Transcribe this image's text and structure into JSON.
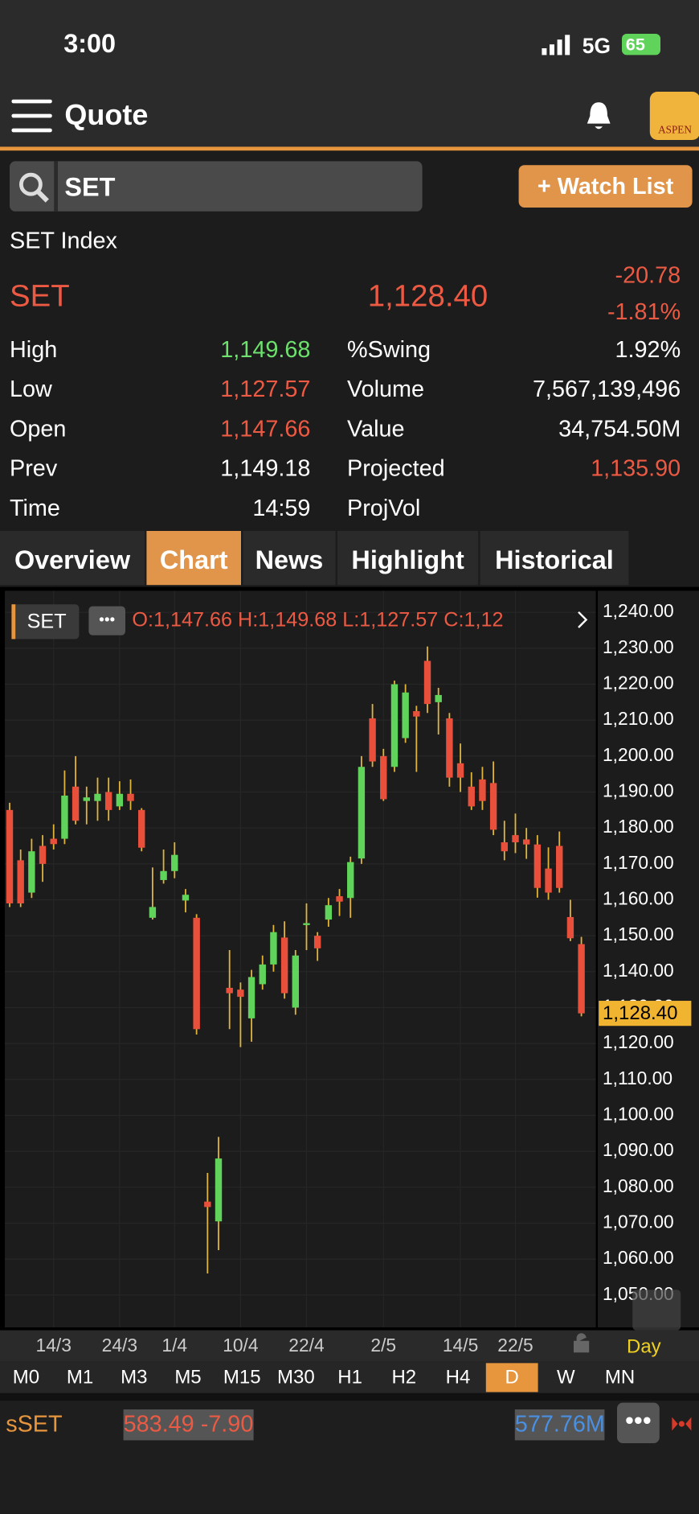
{
  "status": {
    "time": "3:00",
    "network": "5G",
    "battery": "65"
  },
  "header": {
    "title": "Quote",
    "logo": "ASPEN"
  },
  "search": {
    "query": "SET",
    "watch_button": "+ Watch List"
  },
  "quote": {
    "name": "SET Index",
    "symbol": "SET",
    "last": "1,128.40",
    "change": "-20.78",
    "change_pct": "-1.81%",
    "left_stats": [
      {
        "label": "High",
        "value": "1,149.68",
        "color": "#6de06d"
      },
      {
        "label": "Low",
        "value": "1,127.57",
        "color": "#ec5a43"
      },
      {
        "label": "Open",
        "value": "1,147.66",
        "color": "#ec5a43"
      },
      {
        "label": "Prev",
        "value": "1,149.18",
        "color": "#ffffff"
      },
      {
        "label": "Time",
        "value": "14:59",
        "color": "#ffffff"
      }
    ],
    "right_stats": [
      {
        "label": "%Swing",
        "value": "1.92%",
        "color": "#ffffff"
      },
      {
        "label": "Volume",
        "value": "7,567,139,496",
        "color": "#ffffff"
      },
      {
        "label": "Value",
        "value": "34,754.50M",
        "color": "#ffffff"
      },
      {
        "label": "Projected",
        "value": "1,135.90",
        "color": "#ec5a43"
      },
      {
        "label": "ProjVol"
      }
    ]
  },
  "tabs": {
    "items": [
      "Overview",
      "Chart",
      "News",
      "Highlight",
      "Historical"
    ],
    "active": "Chart"
  },
  "chart_data": {
    "type": "candlestick",
    "symbol": "SET",
    "ohlc_text": "O:1,147.66 H:1,149.68 L:1,127.57 C:1,12",
    "period": "Day",
    "up_color": "#5fd35a",
    "down_color": "#e8503c",
    "wick_color": "#e0b43a",
    "categories": [
      null,
      null,
      null,
      null,
      "14/3",
      null,
      null,
      null,
      null,
      null,
      "24/3",
      null,
      null,
      null,
      null,
      "1/4",
      null,
      null,
      null,
      null,
      null,
      "10/4",
      null,
      null,
      null,
      null,
      null,
      "22/4",
      null,
      null,
      null,
      null,
      null,
      null,
      "2/5",
      null,
      null,
      null,
      null,
      null,
      null,
      "14/5",
      null,
      null,
      null,
      null,
      "22/5",
      null,
      null,
      null,
      null,
      null,
      null
    ],
    "open": [
      1185,
      1171,
      1162,
      1175,
      1177,
      1177,
      1191.5,
      1187.5,
      1187.5,
      1190,
      1186,
      1189.5,
      1185,
      1155,
      1165.5,
      1168,
      1159.8,
      1155,
      1076,
      1070.5,
      1135.5,
      1135,
      1127,
      1136.5,
      1142,
      1149.5,
      1130,
      1153,
      1150,
      1154.5,
      1161,
      1160.5,
      1171.5,
      1210.5,
      1200,
      1197,
      1205,
      1212.5,
      1226.5,
      1215,
      1210.5,
      1198,
      1191.5,
      1193.5,
      1192.5,
      1176,
      1178,
      1176.8,
      1175.4,
      1168.7,
      1175,
      1155.2,
      1147.66
    ],
    "high": [
      1187,
      1174,
      1177,
      1178,
      1181,
      1196,
      1200,
      1191.5,
      1194,
      1194,
      1193,
      1193.5,
      1185.5,
      1169,
      1174,
      1176,
      1163,
      1156,
      1084,
      1094,
      1146,
      1137,
      1140.5,
      1144.5,
      1153,
      1154,
      1146,
      1159,
      1151,
      1160.5,
      1163,
      1172,
      1200,
      1214.5,
      1202,
      1221,
      1220,
      1214,
      1230.5,
      1219,
      1212,
      1203.5,
      1195.5,
      1197,
      1198.5,
      1182,
      1184,
      1180,
      1178,
      1174.6,
      1179,
      1160,
      1149.68
    ],
    "low": [
      1158,
      1158,
      1160.5,
      1165,
      1174,
      1175.5,
      1181,
      1181,
      1182,
      1182,
      1185,
      1185,
      1173.5,
      1154.5,
      1164.5,
      1166,
      1156.5,
      1122.5,
      1056,
      1062.5,
      1124,
      1119,
      1120.5,
      1135,
      1140,
      1132.5,
      1128,
      1146,
      1143,
      1152.5,
      1155.5,
      1155,
      1170,
      1197,
      1187.5,
      1195.6,
      1203.7,
      1195.6,
      1212,
      1206,
      1191.5,
      1190,
      1185,
      1185,
      1178,
      1171,
      1173,
      1171.4,
      1160.6,
      1160,
      1162,
      1148.5,
      1127.57
    ],
    "close": [
      1159,
      1159,
      1173.5,
      1170,
      1175.5,
      1189,
      1182,
      1188.5,
      1189.5,
      1185,
      1189.5,
      1187.5,
      1174.5,
      1158,
      1168,
      1172.5,
      1161.4,
      1124,
      1074.5,
      1088,
      1134,
      1133,
      1138.5,
      1142,
      1151,
      1134,
      1144.5,
      1153.5,
      1146.5,
      1158.5,
      1159.5,
      1170.5,
      1197,
      1198.5,
      1188,
      1220,
      1217.7,
      1211,
      1214.5,
      1217,
      1194,
      1194,
      1186,
      1187.5,
      1179.5,
      1173.5,
      1176,
      1175.4,
      1163.3,
      1162,
      1163.3,
      1149.3,
      1128.4
    ],
    "ylim": [
      1041,
      1246
    ],
    "yticks": [
      {
        "value": 1050,
        "label": "1,050.00"
      },
      {
        "value": 1060,
        "label": "1,060.00"
      },
      {
        "value": 1070,
        "label": "1,070.00"
      },
      {
        "value": 1080,
        "label": "1,080.00"
      },
      {
        "value": 1090,
        "label": "1,090.00"
      },
      {
        "value": 1100,
        "label": "1,100.00"
      },
      {
        "value": 1110,
        "label": "1,110.00"
      },
      {
        "value": 1120,
        "label": "1,120.00"
      },
      {
        "value": 1130,
        "label": "1,130.00"
      },
      {
        "value": 1140,
        "label": "1,140.00"
      },
      {
        "value": 1150,
        "label": "1,150.00"
      },
      {
        "value": 1160,
        "label": "1,160.00"
      },
      {
        "value": 1170,
        "label": "1,170.00"
      },
      {
        "value": 1180,
        "label": "1,180.00"
      },
      {
        "value": 1190,
        "label": "1,190.00"
      },
      {
        "value": 1200,
        "label": "1,200.00"
      },
      {
        "value": 1210,
        "label": "1,210.00"
      },
      {
        "value": 1220,
        "label": "1,220.00"
      },
      {
        "value": 1230,
        "label": "1,230.00"
      },
      {
        "value": 1240,
        "label": "1,240.00"
      }
    ],
    "last_price": {
      "value": 1128.4,
      "label": "1,128.40"
    }
  },
  "timeframes": {
    "items": [
      "M0",
      "M1",
      "M3",
      "M5",
      "M15",
      "M30",
      "H1",
      "H2",
      "H4",
      "D",
      "W",
      "MN"
    ],
    "active": "D"
  },
  "ticker": {
    "symbol": "sSET",
    "quote": "583.49 -7.90",
    "volume": "577.76M"
  }
}
